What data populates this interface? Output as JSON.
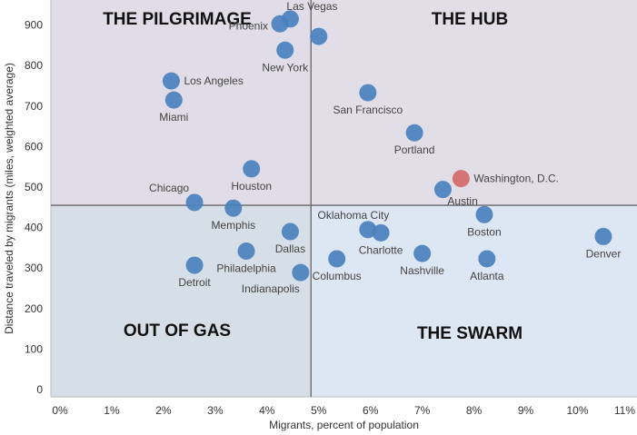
{
  "chart_data": {
    "type": "scatter",
    "xlabel": "Migrants, percent of population",
    "ylabel": "Distance traveled by migrants (miles, weighted average)",
    "xlim": [
      -0.2,
      11.2
    ],
    "ylim": [
      -15,
      965
    ],
    "x_ticks": [
      "0%",
      "1%",
      "2%",
      "3%",
      "4%",
      "5%",
      "6%",
      "7%",
      "8%",
      "9%",
      "10%",
      "11%"
    ],
    "y_ticks": [
      "0",
      "100",
      "200",
      "300",
      "400",
      "500",
      "600",
      "700",
      "800",
      "900"
    ],
    "grid": false,
    "divider": {
      "x": 4.85,
      "y": 455
    },
    "quadrants": [
      {
        "label": "THE PILGRIMAGE",
        "position": "top-left",
        "color": "#e0dde8"
      },
      {
        "label": "THE HUB",
        "position": "top-right",
        "color": "#e2dee8"
      },
      {
        "label": "OUT OF GAS",
        "position": "bottom-left",
        "color": "#d6dfe7"
      },
      {
        "label": "THE SWARM",
        "position": "bottom-right",
        "color": "#dde7f3"
      }
    ],
    "point_color": "#4a81bd",
    "highlight_color": "#d46a6a",
    "points": [
      {
        "name": "Las Vegas",
        "x": 4.45,
        "y": 915,
        "label_pos": "right-up"
      },
      {
        "name": "Phoenix",
        "x": 4.25,
        "y": 903,
        "label_pos": "left"
      },
      {
        "name": "New York",
        "x": 4.35,
        "y": 838,
        "label_pos": "below"
      },
      {
        "name": "",
        "x": 5.0,
        "y": 872,
        "label_pos": "none"
      },
      {
        "name": "Los Angeles",
        "x": 2.15,
        "y": 762,
        "label_pos": "right"
      },
      {
        "name": "Miami",
        "x": 2.2,
        "y": 715,
        "label_pos": "below"
      },
      {
        "name": "San Francisco",
        "x": 5.95,
        "y": 733,
        "label_pos": "below"
      },
      {
        "name": "Portland",
        "x": 6.85,
        "y": 634,
        "label_pos": "below"
      },
      {
        "name": "Houston",
        "x": 3.7,
        "y": 545,
        "label_pos": "below"
      },
      {
        "name": "Washington, D.C.",
        "x": 7.75,
        "y": 521,
        "label_pos": "right",
        "highlight": true
      },
      {
        "name": "Austin",
        "x": 7.4,
        "y": 494,
        "label_pos": "below-right"
      },
      {
        "name": "Chicago",
        "x": 2.6,
        "y": 462,
        "label_pos": "left-up"
      },
      {
        "name": "Memphis",
        "x": 3.35,
        "y": 448,
        "label_pos": "below"
      },
      {
        "name": "Boston",
        "x": 8.2,
        "y": 432,
        "label_pos": "below"
      },
      {
        "name": "Oklahoma City",
        "x": 5.95,
        "y": 395,
        "label_pos": "above"
      },
      {
        "name": "Charlotte",
        "x": 6.2,
        "y": 387,
        "label_pos": "below"
      },
      {
        "name": "Dallas",
        "x": 4.45,
        "y": 390,
        "label_pos": "below"
      },
      {
        "name": "Denver",
        "x": 10.5,
        "y": 378,
        "label_pos": "below"
      },
      {
        "name": "Philadelphia",
        "x": 3.6,
        "y": 342,
        "label_pos": "below"
      },
      {
        "name": "Nashville",
        "x": 7.0,
        "y": 336,
        "label_pos": "below"
      },
      {
        "name": "Columbus",
        "x": 5.35,
        "y": 323,
        "label_pos": "below"
      },
      {
        "name": "Atlanta",
        "x": 8.25,
        "y": 323,
        "label_pos": "below"
      },
      {
        "name": "Detroit",
        "x": 2.6,
        "y": 307,
        "label_pos": "below"
      },
      {
        "name": "Indianapolis",
        "x": 4.65,
        "y": 289,
        "label_pos": "below-left"
      }
    ]
  }
}
